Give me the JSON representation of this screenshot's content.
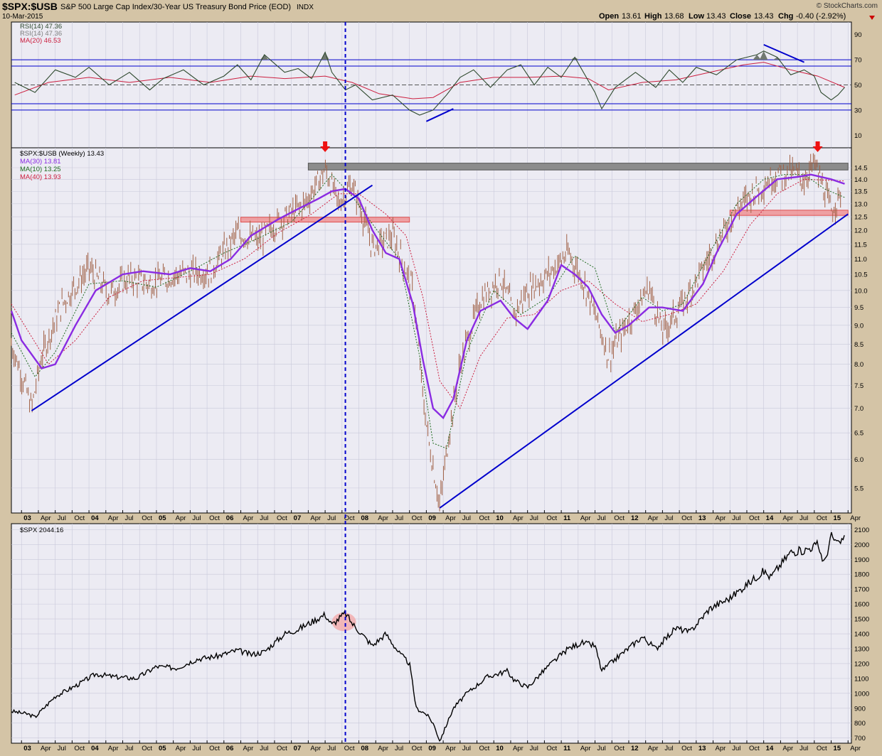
{
  "colors": {
    "background": "#d4c4a6",
    "panel": "#ecebf3",
    "grid": "#c9c9da",
    "rsi": "#2f4a2f",
    "rsi_fill": "#707870",
    "rsi_ma": "#cc1f3f",
    "price_bars": "#a06045",
    "ma30": "#8a2be2",
    "ma10": "#1f6b1f",
    "ma40": "#cc1f3f",
    "trend": "#0000cc",
    "resistance": "#8c8c8c",
    "support": "#f08080",
    "arrow": "#ee1111",
    "spx": "#000000",
    "highlight": "#f4a6a6"
  },
  "header": {
    "symbol": "$SPX:$USB",
    "description": "S&P 500 Large Cap Index/30-Year US Treasury Bond Price (EOD)",
    "exchange": "INDX",
    "date": "10-Mar-2015",
    "copyright": "© StockCharts.com",
    "quote": {
      "open_label": "Open",
      "open": "13.61",
      "high_label": "High",
      "high": "13.68",
      "low_label": "Low",
      "low": "13.43",
      "close_label": "Close",
      "close": "13.43",
      "chg_label": "Chg",
      "chg": "-0.40 (-2.92%)"
    }
  },
  "chart_data": [
    {
      "type": "line",
      "panel": "rsi",
      "legend": [
        "RSI(14) 47.36",
        "RSI(14) 47.36",
        "MA(20) 46.53"
      ],
      "ylim": [
        0,
        100
      ],
      "yticks": [
        10,
        30,
        50,
        70,
        90
      ],
      "reference_lines": [
        30,
        35,
        50,
        65,
        70
      ],
      "x_year_range": [
        2002.85,
        2015.3
      ],
      "series": [
        {
          "x": [
            2002.9,
            2003.2,
            2003.5,
            2003.8,
            2004.0,
            2004.3,
            2004.6,
            2004.9,
            2005.1,
            2005.4,
            2005.7,
            2006.0,
            2006.2,
            2006.4,
            2006.6,
            2006.9,
            2007.1,
            2007.3,
            2007.5,
            2007.6,
            2007.8,
            2007.95,
            2008.2,
            2008.5,
            2008.75,
            2008.9,
            2009.1,
            2009.3,
            2009.5,
            2009.7,
            2009.95,
            2010.2,
            2010.4,
            2010.6,
            2010.8,
            2011.0,
            2011.2,
            2011.5,
            2011.6,
            2011.8,
            2012.1,
            2012.4,
            2012.6,
            2012.8,
            2013.0,
            2013.3,
            2013.6,
            2013.9,
            2014.0,
            2014.2,
            2014.4,
            2014.6,
            2014.75,
            2014.85,
            2015.0,
            2015.1,
            2015.2
          ],
          "values": [
            52,
            44,
            62,
            56,
            64,
            50,
            60,
            46,
            55,
            62,
            50,
            57,
            66,
            54,
            74,
            60,
            63,
            55,
            76,
            60,
            46,
            50,
            38,
            42,
            30,
            26,
            30,
            42,
            56,
            62,
            48,
            62,
            66,
            50,
            64,
            56,
            72,
            44,
            31,
            48,
            60,
            48,
            62,
            52,
            64,
            58,
            70,
            74,
            77,
            72,
            58,
            62,
            57,
            44,
            38,
            42,
            48
          ]
        },
        {
          "x": [
            2002.9,
            2003.4,
            2004.0,
            2004.6,
            2005.2,
            2005.8,
            2006.4,
            2006.9,
            2007.5,
            2007.9,
            2008.3,
            2008.8,
            2009.1,
            2009.5,
            2010.0,
            2010.5,
            2011.0,
            2011.4,
            2011.7,
            2012.2,
            2012.7,
            2013.2,
            2013.7,
            2014.0,
            2014.4,
            2014.8,
            2015.2
          ],
          "values": [
            42,
            52,
            56,
            52,
            56,
            52,
            57,
            55,
            57,
            52,
            43,
            39,
            40,
            52,
            56,
            56,
            57,
            55,
            46,
            52,
            54,
            60,
            66,
            68,
            62,
            57,
            48
          ]
        }
      ]
    },
    {
      "type": "bar",
      "panel": "ratio",
      "title": "$SPX:$USB (Weekly) 13.43",
      "legend": [
        "MA(30) 13.81",
        "MA(10) 13.25",
        "MA(40) 13.93"
      ],
      "scale": "log",
      "ylim": [
        5.1,
        15.4
      ],
      "yticks": [
        5.5,
        6.0,
        6.5,
        7.0,
        7.5,
        8.0,
        8.5,
        9.0,
        9.5,
        10.0,
        10.5,
        11.0,
        11.5,
        12.0,
        12.5,
        13.0,
        13.5,
        14.0,
        14.5
      ],
      "x_year_range": [
        2002.85,
        2015.3
      ],
      "x": [
        2002.85,
        2003.15,
        2003.3,
        2003.6,
        2004.0,
        2004.3,
        2004.6,
        2004.9,
        2005.3,
        2005.8,
        2006.2,
        2006.5,
        2006.8,
        2007.2,
        2007.5,
        2007.7,
        2007.9,
        2008.2,
        2008.5,
        2008.8,
        2008.95,
        2009.05,
        2009.2,
        2009.5,
        2009.8,
        2010.1,
        2010.3,
        2010.5,
        2010.8,
        2011.1,
        2011.3,
        2011.5,
        2011.7,
        2011.9,
        2012.3,
        2012.5,
        2012.8,
        2013.0,
        2013.3,
        2013.6,
        2013.9,
        2014.2,
        2014.4,
        2014.6,
        2014.75,
        2014.85,
        2015.0,
        2015.15
      ],
      "values": [
        8.5,
        7.0,
        8.2,
        9.6,
        10.7,
        9.9,
        10.4,
        10.2,
        10.5,
        10.6,
        11.9,
        11.6,
        12.3,
        13.0,
        14.4,
        13.0,
        13.8,
        11.4,
        11.8,
        10.0,
        7.2,
        6.2,
        5.2,
        8.0,
        9.7,
        10.4,
        9.3,
        10.0,
        10.5,
        11.2,
        10.4,
        9.3,
        8.2,
        8.8,
        10.1,
        8.8,
        9.6,
        10.3,
        11.5,
        12.8,
        13.6,
        14.2,
        14.3,
        14.0,
        14.7,
        13.9,
        12.7,
        13.43
      ],
      "ma30": {
        "x": [
          2002.85,
          2003.0,
          2003.3,
          2003.5,
          2003.8,
          2004.1,
          2004.5,
          2004.8,
          2005.2,
          2005.5,
          2005.8,
          2006.1,
          2006.4,
          2006.8,
          2007.1,
          2007.4,
          2007.6,
          2007.8,
          2008.0,
          2008.2,
          2008.4,
          2008.6,
          2008.8,
          2008.95,
          2009.1,
          2009.25,
          2009.4,
          2009.6,
          2009.8,
          2010.1,
          2010.3,
          2010.5,
          2010.8,
          2011.0,
          2011.2,
          2011.4,
          2011.6,
          2011.8,
          2012.0,
          2012.3,
          2012.5,
          2012.8,
          2013.1,
          2013.3,
          2013.6,
          2013.9,
          2014.2,
          2014.5,
          2014.7,
          2015.0,
          2015.2
        ],
        "values": [
          9.4,
          8.6,
          7.9,
          8.0,
          9.0,
          10.0,
          10.5,
          10.6,
          10.5,
          10.7,
          10.6,
          11.0,
          11.8,
          12.4,
          12.8,
          13.2,
          13.5,
          13.6,
          13.2,
          12.0,
          11.2,
          11.0,
          9.6,
          8.1,
          7.0,
          6.8,
          7.2,
          8.6,
          9.4,
          9.7,
          9.2,
          8.9,
          9.7,
          10.8,
          10.5,
          10.1,
          9.3,
          8.8,
          9.0,
          9.5,
          9.5,
          9.4,
          10.2,
          11.2,
          12.6,
          13.3,
          14.0,
          14.1,
          14.2,
          14.0,
          13.81
        ]
      },
      "ma10": {
        "x": [
          2002.85,
          2003.2,
          2003.5,
          2004.0,
          2004.5,
          2005.0,
          2005.5,
          2006.0,
          2006.5,
          2007.0,
          2007.4,
          2007.6,
          2007.9,
          2008.3,
          2008.6,
          2008.9,
          2009.1,
          2009.3,
          2009.6,
          2010.0,
          2010.4,
          2010.8,
          2011.2,
          2011.5,
          2011.8,
          2012.2,
          2012.5,
          2012.8,
          2013.2,
          2013.6,
          2014.0,
          2014.3,
          2014.6,
          2014.9,
          2015.2
        ],
        "values": [
          8.8,
          7.7,
          8.3,
          10.2,
          10.3,
          10.1,
          10.6,
          11.2,
          11.7,
          12.3,
          13.5,
          14.2,
          13.3,
          11.9,
          11.0,
          8.2,
          6.3,
          6.2,
          8.3,
          10.0,
          9.3,
          9.8,
          11.1,
          10.7,
          8.8,
          9.8,
          9.4,
          9.6,
          11.2,
          13.0,
          14.0,
          14.2,
          14.2,
          13.6,
          13.25
        ]
      },
      "ma40": {
        "x": [
          2002.85,
          2003.4,
          2003.8,
          2004.3,
          2004.8,
          2005.3,
          2005.8,
          2006.3,
          2006.8,
          2007.3,
          2007.7,
          2008.0,
          2008.4,
          2008.7,
          2008.95,
          2009.2,
          2009.5,
          2009.8,
          2010.2,
          2010.6,
          2011.0,
          2011.4,
          2011.8,
          2012.2,
          2012.6,
          2013.0,
          2013.4,
          2013.8,
          2014.2,
          2014.6,
          2015.2
        ],
        "values": [
          9.6,
          8.0,
          8.6,
          9.8,
          10.3,
          10.4,
          10.5,
          11.0,
          11.9,
          12.6,
          13.4,
          13.4,
          12.6,
          11.8,
          9.8,
          7.6,
          7.0,
          8.2,
          9.2,
          9.3,
          10.0,
          10.3,
          9.6,
          9.1,
          9.3,
          9.6,
          10.6,
          12.2,
          13.4,
          14.0,
          13.93
        ]
      },
      "resistance_level": [
        14.4,
        14.7
      ],
      "support_levels": [
        {
          "from": 2006.25,
          "to": 2008.75,
          "low": 12.3,
          "high": 12.48
        },
        {
          "from": 2013.5,
          "to": 2015.25,
          "low": 12.55,
          "high": 12.75
        }
      ],
      "trendlines": [
        {
          "x": [
            2003.15,
            2008.2
          ],
          "values": [
            6.95,
            13.75
          ]
        },
        {
          "x": [
            2009.2,
            2015.25
          ],
          "values": [
            5.18,
            12.6
          ]
        }
      ],
      "arrows": [
        2007.5,
        2014.8
      ]
    },
    {
      "type": "line",
      "panel": "spx",
      "title": "$SPX 2044.16",
      "ylim": [
        665,
        2140
      ],
      "yticks": [
        700,
        800,
        900,
        1000,
        1100,
        1200,
        1300,
        1400,
        1500,
        1600,
        1700,
        1800,
        1900,
        2000,
        2100
      ],
      "x_year_range": [
        2002.85,
        2015.3
      ],
      "x": [
        2002.85,
        2003.1,
        2003.2,
        2003.5,
        2003.8,
        2004.1,
        2004.4,
        2004.7,
        2005.0,
        2005.3,
        2005.6,
        2005.9,
        2006.2,
        2006.4,
        2006.6,
        2006.9,
        2007.1,
        2007.3,
        2007.5,
        2007.6,
        2007.8,
        2007.9,
        2008.1,
        2008.2,
        2008.4,
        2008.6,
        2008.75,
        2008.85,
        2009.0,
        2009.1,
        2009.2,
        2009.4,
        2009.6,
        2009.9,
        2010.2,
        2010.3,
        2010.5,
        2010.8,
        2011.1,
        2011.3,
        2011.5,
        2011.6,
        2011.8,
        2012.2,
        2012.4,
        2012.7,
        2012.9,
        2013.2,
        2013.5,
        2013.8,
        2014.0,
        2014.1,
        2014.4,
        2014.6,
        2014.8,
        2014.9,
        2015.0,
        2015.1,
        2015.2
      ],
      "values": [
        880,
        860,
        840,
        980,
        1050,
        1130,
        1110,
        1100,
        1180,
        1170,
        1230,
        1250,
        1290,
        1260,
        1280,
        1400,
        1430,
        1480,
        1530,
        1460,
        1540,
        1470,
        1370,
        1320,
        1400,
        1270,
        1200,
        900,
        860,
        800,
        680,
        900,
        1000,
        1110,
        1150,
        1090,
        1040,
        1180,
        1300,
        1340,
        1320,
        1150,
        1230,
        1380,
        1300,
        1440,
        1410,
        1570,
        1640,
        1750,
        1820,
        1780,
        1950,
        1960,
        2000,
        1870,
        2060,
        2000,
        2044
      ]
    }
  ],
  "x_axis": {
    "ticks": [
      "03",
      "Apr",
      "Jul",
      "Oct",
      "04",
      "Apr",
      "Jul",
      "Oct",
      "05",
      "Apr",
      "Jul",
      "Oct",
      "06",
      "Apr",
      "Jul",
      "Oct",
      "07",
      "Apr",
      "Jul",
      "Oct",
      "08",
      "Apr",
      "Jul",
      "Oct",
      "09",
      "Apr",
      "Jul",
      "Oct",
      "10",
      "Apr",
      "Jul",
      "Oct",
      "11",
      "Apr",
      "Jul",
      "Oct",
      "12",
      "Apr",
      "Jul",
      "Oct",
      "13",
      "Apr",
      "Jul",
      "Oct",
      "14",
      "Apr",
      "Jul",
      "Oct",
      "15",
      "Apr"
    ],
    "start_year": 2003,
    "vertical_marker_year": 2007.8
  },
  "highlight": {
    "year": 2007.8,
    "value": 1480
  }
}
